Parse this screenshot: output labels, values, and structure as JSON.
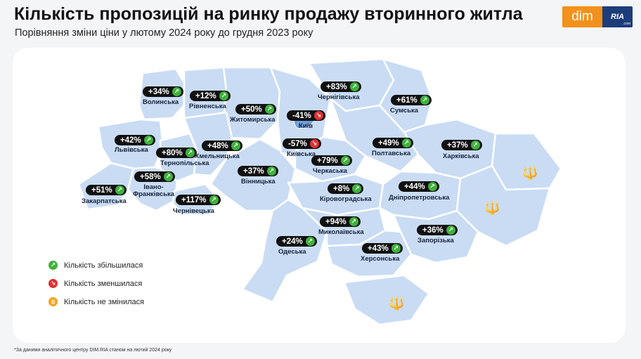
{
  "header": {
    "title": "Кількість пропозицій на ринку продажу вторинного житла",
    "subtitle": "Порівняння зміни ціни у лютому 2024 року до грудня 2023 року"
  },
  "logo": {
    "dim": "dim",
    "ria": "RIA",
    "ria_sub": ".com"
  },
  "colors": {
    "map_fill": "#c9dcf4",
    "increase": "#3fb23c",
    "decrease": "#e03232",
    "unchanged": "#f2a31b"
  },
  "regions": {
    "volynska": {
      "name": "Волинська",
      "change": "+34%",
      "trend": "up"
    },
    "rivnenska": {
      "name": "Рівненська",
      "change": "+12%",
      "trend": "up"
    },
    "zhytomyrska": {
      "name": "Житомирська",
      "change": "+50%",
      "trend": "up"
    },
    "kyiv": {
      "name": "Київ",
      "change": "-41%",
      "trend": "down"
    },
    "chernihivska": {
      "name": "Чернігівська",
      "change": "+83%",
      "trend": "up"
    },
    "sumska": {
      "name": "Сумська",
      "change": "+61%",
      "trend": "up"
    },
    "lvivska": {
      "name": "Львівська",
      "change": "+42%",
      "trend": "up"
    },
    "khmelnytska": {
      "name": "Хмельницька",
      "change": "+48%",
      "trend": "up"
    },
    "ternopilska": {
      "name": "Тернопільська",
      "change": "+80%",
      "trend": "up"
    },
    "kyivska": {
      "name": "Київська",
      "change": "-57%",
      "trend": "down"
    },
    "poltavska": {
      "name": "Полтавська",
      "change": "+49%",
      "trend": "up"
    },
    "kharkivska": {
      "name": "Харківська",
      "change": "+37%",
      "trend": "up"
    },
    "cherkaska": {
      "name": "Черкаська",
      "change": "+79%",
      "trend": "up"
    },
    "vinnytska": {
      "name": "Вінницька",
      "change": "+37%",
      "trend": "up"
    },
    "ivanofrankivska": {
      "name": "Івано-\nФранківська",
      "change": "+58%",
      "trend": "up"
    },
    "zakarpatska": {
      "name": "Закарпатська",
      "change": "+51%",
      "trend": "up"
    },
    "chernivetska": {
      "name": "Чернівецька",
      "change": "+117%",
      "trend": "up"
    },
    "kirovohradska": {
      "name": "Кіровоградська",
      "change": "+8%",
      "trend": "up"
    },
    "dnipropetrovska": {
      "name": "Дніпропетровська",
      "change": "+44%",
      "trend": "up"
    },
    "mykolaivska": {
      "name": "Миколаївська",
      "change": "+94%",
      "trend": "up"
    },
    "zaporizka": {
      "name": "Запорізька",
      "change": "+36%",
      "trend": "up"
    },
    "odeska": {
      "name": "Одеська",
      "change": "+24%",
      "trend": "up"
    },
    "khersonska": {
      "name": "Херсонська",
      "change": "+43%",
      "trend": "up"
    }
  },
  "legend": {
    "increased": "Кількість збільшилася",
    "decreased": "Кількість зменшилася",
    "unchanged": "Кількість не змінилася"
  },
  "footnote": "*За даними аналітичного центру DIM.RIA станом на лютий 2024 року"
}
